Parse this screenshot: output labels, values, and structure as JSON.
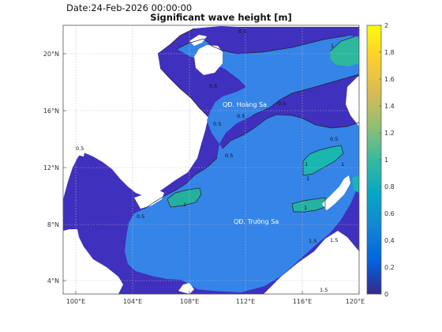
{
  "header": {
    "date": "Date:24-Feb-2026 00:00:00",
    "title": "Significant wave height [m]"
  },
  "map": {
    "x_ticks": [
      "100°E",
      "104°E",
      "108°E",
      "112°E",
      "116°E",
      "120°E"
    ],
    "y_ticks": [
      "20°N",
      "16°N",
      "12°N",
      "8°N",
      "4°N"
    ],
    "region_labels": {
      "hoang_sa": "QĐ. Hoàng Sa",
      "truong_sa": "QĐ. Trường Sa"
    },
    "contour_labels": [
      "0.5",
      "0.5",
      "0.5",
      "0.5",
      "0.5",
      "0.5",
      "0.5",
      "0.5",
      "0.5",
      "1",
      "1",
      "1",
      "1",
      "1",
      "1",
      "1.5",
      "1.5",
      "1.5"
    ],
    "colors": {
      "land": "#ffffff",
      "v0_2": "#3f30bd",
      "v0_5": "#3584e8",
      "v1": "#18b7b0",
      "v1_5": "#2db79c"
    }
  },
  "colorbar": {
    "ticks": [
      "2",
      "1.8",
      "1.6",
      "1.4",
      "1.2",
      "1",
      "0.8",
      "0.6",
      "0.4",
      "0.2",
      "0"
    ],
    "range": [
      0,
      2
    ],
    "colormap": "parula"
  }
}
